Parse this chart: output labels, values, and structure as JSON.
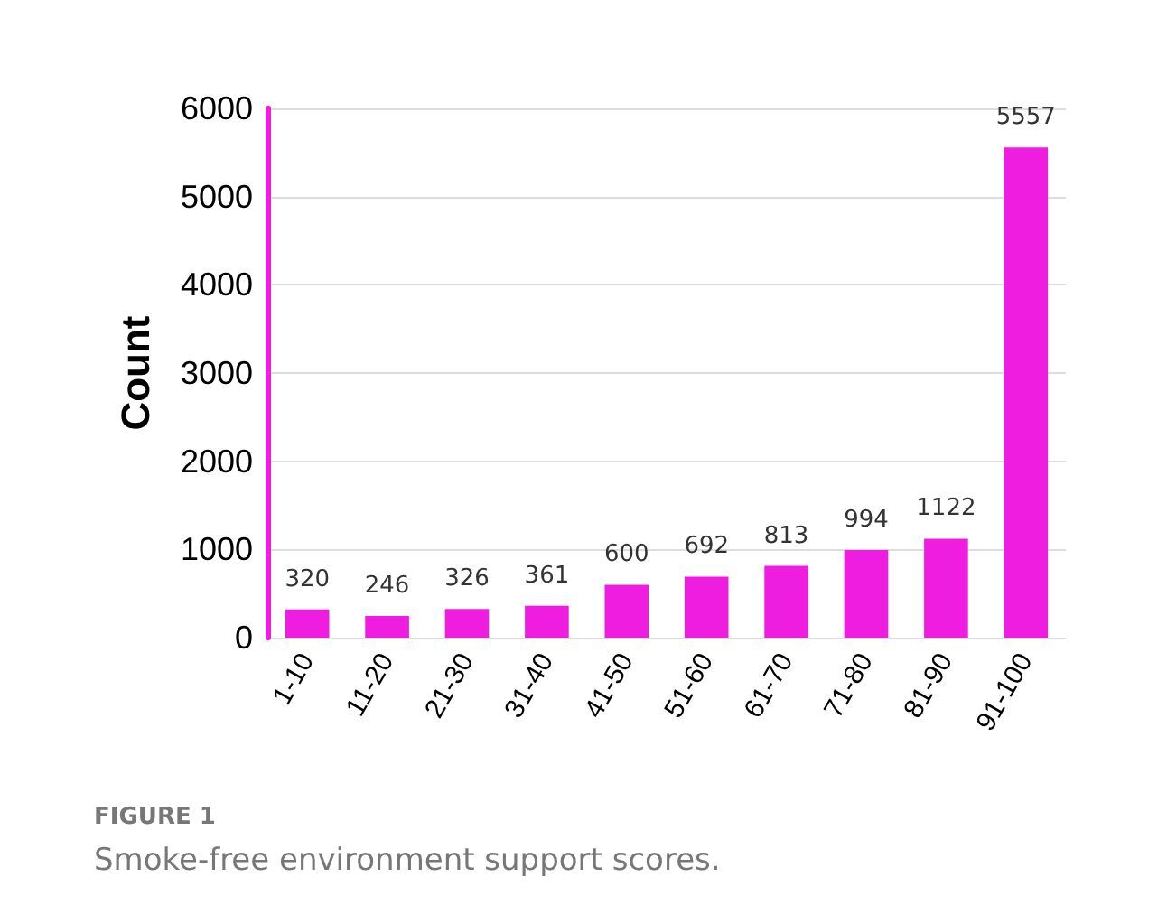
{
  "chart_data": {
    "type": "bar",
    "ylabel": "Count",
    "categories": [
      "1-10",
      "11-20",
      "21-30",
      "31-40",
      "41-50",
      "51-60",
      "61-70",
      "71-80",
      "81-90",
      "91-100"
    ],
    "values": [
      320,
      246,
      326,
      361,
      600,
      692,
      813,
      994,
      1122,
      5557
    ],
    "color": "#ee1de0",
    "ylim": [
      0,
      6000
    ],
    "yticks": [
      0,
      1000,
      2000,
      3000,
      4000,
      5000,
      6000
    ],
    "grid": "y",
    "data_labels": true,
    "annotations": [
      "FIGURE 1",
      "Smoke-free environment support scores."
    ]
  }
}
